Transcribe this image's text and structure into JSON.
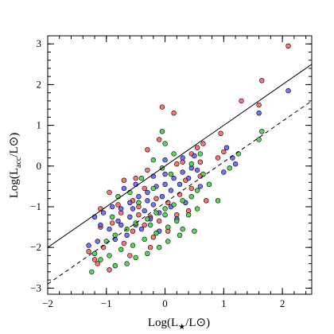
{
  "chart_data": {
    "type": "scatter",
    "title": "",
    "xlabel": "Log(L★/L⊙)",
    "ylabel": "Log(L_acc/L⊙)",
    "xlabel_main": "Log(L",
    "xlabel_sub": "★",
    "xlabel_tail": "/L⊙)",
    "ylabel_main": "Log(L",
    "ylabel_sub": "acc",
    "ylabel_tail": "/L⊙)",
    "xlim": [
      -2,
      2.5
    ],
    "ylim": [
      -3.15,
      3.2
    ],
    "xticks": [
      -2,
      -1,
      0,
      1,
      2
    ],
    "yticks": [
      -3,
      -2,
      -1,
      0,
      1,
      2,
      3
    ],
    "xtick_labels": [
      "−2",
      "−1",
      "0",
      "1",
      "2"
    ],
    "ytick_labels": [
      "−3",
      "−2",
      "−1",
      "0",
      "1",
      "2",
      "3"
    ],
    "grid": false,
    "lines": [
      {
        "style": "solid",
        "color": "#000000",
        "slope": 1.0,
        "intercept": 0.0
      },
      {
        "style": "dashed",
        "color": "#000000",
        "slope": 1.0,
        "intercept": -0.9
      }
    ],
    "series": [
      {
        "color": "#ff5a5a",
        "points": [
          [
            2.1,
            2.95
          ],
          [
            1.65,
            2.1
          ],
          [
            1.3,
            1.6
          ],
          [
            1.6,
            1.5
          ],
          [
            0.95,
            0.8
          ],
          [
            0.65,
            0.55
          ],
          [
            0.55,
            0.45
          ],
          [
            0.45,
            0.3
          ],
          [
            0.9,
            0.2
          ],
          [
            0.3,
            0.1
          ],
          [
            0.2,
            0.05
          ],
          [
            -0.05,
            1.45
          ],
          [
            0.15,
            1.3
          ],
          [
            -0.1,
            0.65
          ],
          [
            -0.3,
            0.4
          ],
          [
            -0.3,
            -0.1
          ],
          [
            -0.5,
            -0.3
          ],
          [
            -0.35,
            -0.55
          ],
          [
            -0.7,
            -0.35
          ],
          [
            -0.95,
            -0.65
          ],
          [
            -0.55,
            -0.85
          ],
          [
            -0.75,
            -1.15
          ],
          [
            -0.45,
            -1.2
          ],
          [
            -0.25,
            -1.25
          ],
          [
            0.05,
            -0.9
          ],
          [
            0.25,
            -0.7
          ],
          [
            0.45,
            -0.55
          ],
          [
            0.6,
            -0.25
          ],
          [
            0.4,
            -1.1
          ],
          [
            -0.9,
            -1.4
          ],
          [
            -1.1,
            -1.5
          ],
          [
            -1.3,
            -2.1
          ],
          [
            -1.2,
            -2.3
          ],
          [
            -1.05,
            -2.0
          ],
          [
            -0.7,
            -1.9
          ],
          [
            -0.2,
            -1.75
          ],
          [
            0.05,
            -1.6
          ],
          [
            -0.55,
            -1.6
          ],
          [
            -0.35,
            -1.45
          ],
          [
            -0.1,
            -1.35
          ],
          [
            0.2,
            -1.2
          ],
          [
            -0.6,
            -2.2
          ],
          [
            -0.95,
            -2.55
          ],
          [
            -1.15,
            -2.4
          ],
          [
            -0.45,
            -1.0
          ],
          [
            -0.15,
            -0.8
          ],
          [
            -0.8,
            -0.95
          ],
          [
            -1.1,
            -1.05
          ],
          [
            0.6,
            0.1
          ],
          [
            1.0,
            0.35
          ],
          [
            0.35,
            -0.35
          ],
          [
            0.7,
            -0.85
          ],
          [
            -0.25,
            -2.0
          ]
        ]
      },
      {
        "color": "#5a5aff",
        "points": [
          [
            2.1,
            1.85
          ],
          [
            1.6,
            1.3
          ],
          [
            1.05,
            0.45
          ],
          [
            1.15,
            0.2
          ],
          [
            1.0,
            -0.15
          ],
          [
            0.5,
            0.25
          ],
          [
            0.45,
            -0.05
          ],
          [
            0.3,
            -0.15
          ],
          [
            0.15,
            -0.3
          ],
          [
            0.0,
            -0.45
          ],
          [
            -0.15,
            -0.5
          ],
          [
            -0.3,
            -0.65
          ],
          [
            -0.45,
            -0.75
          ],
          [
            -0.6,
            -0.9
          ],
          [
            -0.75,
            -1.05
          ],
          [
            -0.9,
            -1.0
          ],
          [
            -1.05,
            -1.15
          ],
          [
            -1.2,
            -1.25
          ],
          [
            -1.1,
            -1.45
          ],
          [
            -0.95,
            -1.55
          ],
          [
            -0.8,
            -1.35
          ],
          [
            -0.6,
            -1.25
          ],
          [
            -0.5,
            -1.45
          ],
          [
            -0.35,
            -1.1
          ],
          [
            -0.2,
            -0.95
          ],
          [
            -0.05,
            -0.75
          ],
          [
            0.1,
            -0.6
          ],
          [
            0.25,
            -0.45
          ],
          [
            0.4,
            -0.3
          ],
          [
            0.55,
            -0.1
          ],
          [
            0.6,
            -0.5
          ],
          [
            0.1,
            -1.0
          ],
          [
            -0.1,
            -1.15
          ],
          [
            -0.25,
            -1.3
          ],
          [
            -0.4,
            -1.55
          ],
          [
            -0.65,
            -1.7
          ],
          [
            -0.85,
            -1.8
          ],
          [
            -1.3,
            -1.95
          ],
          [
            -1.15,
            -1.85
          ],
          [
            -0.7,
            -0.55
          ],
          [
            -0.5,
            -0.45
          ],
          [
            -0.2,
            -0.25
          ],
          [
            0.0,
            0.15
          ],
          [
            -0.1,
            -1.6
          ],
          [
            0.2,
            -1.3
          ],
          [
            0.35,
            -0.9
          ],
          [
            -0.55,
            -1.05
          ],
          [
            -0.3,
            -0.85
          ],
          [
            0.3,
            0.2
          ],
          [
            0.0,
            -0.2
          ],
          [
            -0.75,
            -1.45
          ],
          [
            1.2,
            0.05
          ]
        ]
      },
      {
        "color": "#3cd23c",
        "points": [
          [
            1.65,
            0.85
          ],
          [
            1.6,
            0.65
          ],
          [
            1.1,
            -0.05
          ],
          [
            1.25,
            0.3
          ],
          [
            0.75,
            -0.45
          ],
          [
            0.55,
            -0.6
          ],
          [
            0.45,
            -0.75
          ],
          [
            0.3,
            -0.85
          ],
          [
            0.15,
            -0.95
          ],
          [
            0.0,
            -1.05
          ],
          [
            -0.15,
            -1.15
          ],
          [
            -0.3,
            -1.3
          ],
          [
            -0.5,
            -1.4
          ],
          [
            -0.65,
            -1.55
          ],
          [
            -0.85,
            -1.7
          ],
          [
            -1.0,
            -1.85
          ],
          [
            -1.2,
            -2.15
          ],
          [
            -1.1,
            -2.3
          ],
          [
            -0.95,
            -2.2
          ],
          [
            -0.75,
            -2.05
          ],
          [
            -0.55,
            -1.95
          ],
          [
            -0.35,
            -1.8
          ],
          [
            -0.15,
            -1.65
          ],
          [
            0.05,
            -1.5
          ],
          [
            0.2,
            -1.35
          ],
          [
            0.4,
            -1.2
          ],
          [
            0.55,
            -1.05
          ],
          [
            0.25,
            -1.7
          ],
          [
            0.05,
            -1.85
          ],
          [
            -0.1,
            -2.0
          ],
          [
            -0.3,
            -2.15
          ],
          [
            -0.5,
            -2.25
          ],
          [
            -0.65,
            -2.4
          ],
          [
            -0.85,
            -2.45
          ],
          [
            -1.25,
            -2.6
          ],
          [
            -0.05,
            0.85
          ],
          [
            0.0,
            0.55
          ],
          [
            0.15,
            0.3
          ],
          [
            0.45,
            0.05
          ],
          [
            0.6,
            0.3
          ],
          [
            -0.2,
            0.15
          ],
          [
            -0.4,
            -0.3
          ],
          [
            -0.6,
            -0.65
          ],
          [
            -0.8,
            -0.75
          ],
          [
            -0.9,
            -1.25
          ],
          [
            -0.45,
            -0.9
          ],
          [
            -0.2,
            -0.55
          ],
          [
            0.1,
            -0.2
          ],
          [
            0.3,
            -1.55
          ],
          [
            0.5,
            -1.6
          ],
          [
            -0.25,
            -1.45
          ],
          [
            0.0,
            -1.2
          ],
          [
            0.65,
            -0.2
          ],
          [
            0.9,
            -0.85
          ],
          [
            -0.05,
            -0.05
          ]
        ]
      }
    ]
  }
}
